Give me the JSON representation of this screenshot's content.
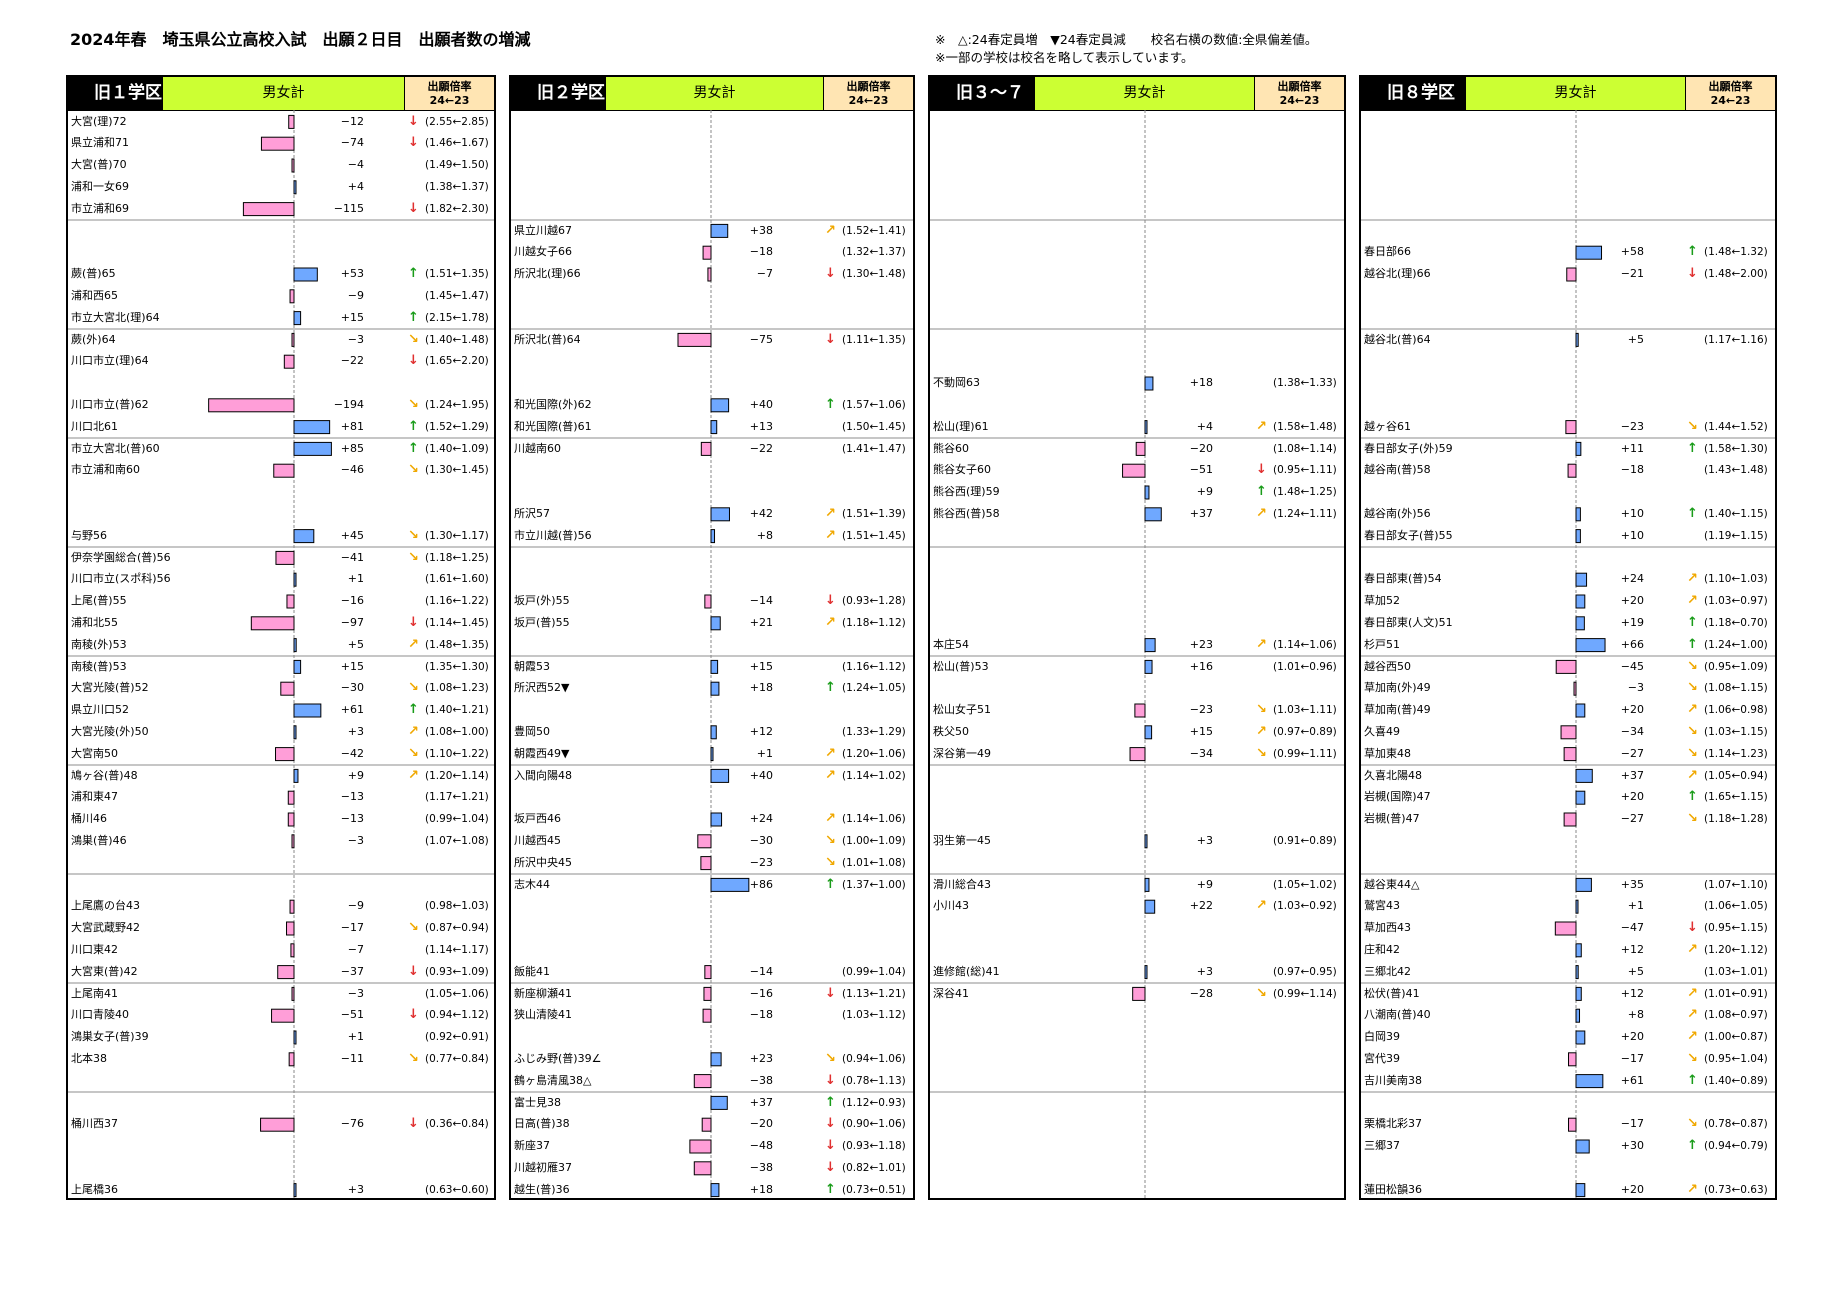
{
  "title": "2024年春　埼玉県公立高校入試　出願２日目　出願者数の増減",
  "notes": [
    "※　△:24春定員増　▼24春定員減　　校名右横の数値:全県偏差値。",
    "※一部の学校は校名を略して表示しています。"
  ],
  "header": {
    "gender_label": "男女計",
    "ratio_label_line1": "出願倍率",
    "ratio_label_line2": "24←23"
  },
  "colors": {
    "increase_bar": "#6fa8ff",
    "decrease_bar": "#ff9ed8",
    "up_arrow": "#1a9c1a",
    "down_arrow": "#e03030",
    "diag_up_arrow": "#f0a800",
    "diag_down_arrow": "#f0a800",
    "gender_bg": "#ccff33",
    "ratio_bg": "#ffe5b3"
  },
  "chart_data": [
    {
      "type": "bar",
      "district": "旧１学区",
      "rows": [
        {
          "name": "大宮(理)72",
          "delta": -12,
          "arrow": "down",
          "ratio": "(2.55←2.85)",
          "slot": 0
        },
        {
          "name": "県立浦和71",
          "delta": -74,
          "arrow": "down",
          "ratio": "(1.46←1.67)",
          "slot": 1
        },
        {
          "name": "大宮(普)70",
          "delta": -4,
          "arrow": "",
          "ratio": "(1.49←1.50)",
          "slot": 2
        },
        {
          "name": "浦和一女69",
          "delta": 4,
          "arrow": "",
          "ratio": "(1.38←1.37)",
          "slot": 3
        },
        {
          "name": "市立浦和69",
          "delta": -115,
          "arrow": "down",
          "ratio": "(1.82←2.30)",
          "slot": 4
        },
        {
          "name": "蕨(普)65",
          "delta": 53,
          "arrow": "up",
          "ratio": "(1.51←1.35)",
          "slot": 7
        },
        {
          "name": "浦和西65",
          "delta": -9,
          "arrow": "",
          "ratio": "(1.45←1.47)",
          "slot": 8
        },
        {
          "name": "市立大宮北(理)64",
          "delta": 15,
          "arrow": "up",
          "ratio": "(2.15←1.78)",
          "slot": 9
        },
        {
          "name": "蕨(外)64",
          "delta": -3,
          "arrow": "diag-down",
          "ratio": "(1.40←1.48)",
          "slot": 10
        },
        {
          "name": "川口市立(理)64",
          "delta": -22,
          "arrow": "down",
          "ratio": "(1.65←2.20)",
          "slot": 11
        },
        {
          "name": "川口市立(普)62",
          "delta": -194,
          "arrow": "diag-down",
          "ratio": "(1.24←1.95)",
          "slot": 13
        },
        {
          "name": "川口北61",
          "delta": 81,
          "arrow": "up",
          "ratio": "(1.52←1.29)",
          "slot": 14
        },
        {
          "name": "市立大宮北(普)60",
          "delta": 85,
          "arrow": "up",
          "ratio": "(1.40←1.09)",
          "slot": 15
        },
        {
          "name": "市立浦和南60",
          "delta": -46,
          "arrow": "diag-down",
          "ratio": "(1.30←1.45)",
          "slot": 16
        },
        {
          "name": "与野56",
          "delta": 45,
          "arrow": "diag-down",
          "ratio": "(1.30←1.17)",
          "slot": 19
        },
        {
          "name": "伊奈学園総合(普)56",
          "delta": -41,
          "arrow": "diag-down",
          "ratio": "(1.18←1.25)",
          "slot": 20
        },
        {
          "name": "川口市立(スポ科)56",
          "delta": 1,
          "arrow": "",
          "ratio": "(1.61←1.60)",
          "slot": 21
        },
        {
          "name": "上尾(普)55",
          "delta": -16,
          "arrow": "",
          "ratio": "(1.16←1.22)",
          "slot": 22
        },
        {
          "name": "浦和北55",
          "delta": -97,
          "arrow": "down",
          "ratio": "(1.14←1.45)",
          "slot": 23
        },
        {
          "name": "南稜(外)53",
          "delta": 5,
          "arrow": "diag-up",
          "ratio": "(1.48←1.35)",
          "slot": 24
        },
        {
          "name": "南稜(普)53",
          "delta": 15,
          "arrow": "",
          "ratio": "(1.35←1.30)",
          "slot": 25
        },
        {
          "name": "大宮光陵(普)52",
          "delta": -30,
          "arrow": "diag-down",
          "ratio": "(1.08←1.23)",
          "slot": 26
        },
        {
          "name": "県立川口52",
          "delta": 61,
          "arrow": "up",
          "ratio": "(1.40←1.21)",
          "slot": 27
        },
        {
          "name": "大宮光陵(外)50",
          "delta": 3,
          "arrow": "diag-up",
          "ratio": "(1.08←1.00)",
          "slot": 28
        },
        {
          "name": "大宮南50",
          "delta": -42,
          "arrow": "diag-down",
          "ratio": "(1.10←1.22)",
          "slot": 29
        },
        {
          "name": "鳩ヶ谷(普)48",
          "delta": 9,
          "arrow": "diag-up",
          "ratio": "(1.20←1.14)",
          "slot": 30
        },
        {
          "name": "浦和東47",
          "delta": -13,
          "arrow": "",
          "ratio": "(1.17←1.21)",
          "slot": 31
        },
        {
          "name": "桶川46",
          "delta": -13,
          "arrow": "",
          "ratio": "(0.99←1.04)",
          "slot": 32
        },
        {
          "name": "鴻巣(普)46",
          "delta": -3,
          "arrow": "",
          "ratio": "(1.07←1.08)",
          "slot": 33
        },
        {
          "name": "上尾鷹の台43",
          "delta": -9,
          "arrow": "",
          "ratio": "(0.98←1.03)",
          "slot": 36
        },
        {
          "name": "大宮武蔵野42",
          "delta": -17,
          "arrow": "diag-down",
          "ratio": "(0.87←0.94)",
          "slot": 37
        },
        {
          "name": "川口東42",
          "delta": -7,
          "arrow": "",
          "ratio": "(1.14←1.17)",
          "slot": 38
        },
        {
          "name": "大宮東(普)42",
          "delta": -37,
          "arrow": "down",
          "ratio": "(0.93←1.09)",
          "slot": 39
        },
        {
          "name": "上尾南41",
          "delta": -3,
          "arrow": "",
          "ratio": "(1.05←1.06)",
          "slot": 40
        },
        {
          "name": "川口青陵40",
          "delta": -51,
          "arrow": "down",
          "ratio": "(0.94←1.12)",
          "slot": 41
        },
        {
          "name": "鴻巣女子(普)39",
          "delta": 1,
          "arrow": "",
          "ratio": "(0.92←0.91)",
          "slot": 42
        },
        {
          "name": "北本38",
          "delta": -11,
          "arrow": "diag-down",
          "ratio": "(0.77←0.84)",
          "slot": 43
        },
        {
          "name": "桶川西37",
          "delta": -76,
          "arrow": "down",
          "ratio": "(0.36←0.84)",
          "slot": 46
        },
        {
          "name": "上尾橋36",
          "delta": 3,
          "arrow": "",
          "ratio": "(0.63←0.60)",
          "slot": 49
        }
      ]
    },
    {
      "type": "bar",
      "district": "旧２学区",
      "rows": [
        {
          "name": "県立川越67",
          "delta": 38,
          "arrow": "diag-up",
          "ratio": "(1.52←1.41)",
          "slot": 5
        },
        {
          "name": "川越女子66",
          "delta": -18,
          "arrow": "",
          "ratio": "(1.32←1.37)",
          "slot": 6
        },
        {
          "name": "所沢北(理)66",
          "delta": -7,
          "arrow": "down",
          "ratio": "(1.30←1.48)",
          "slot": 7
        },
        {
          "name": "所沢北(普)64",
          "delta": -75,
          "arrow": "down",
          "ratio": "(1.11←1.35)",
          "slot": 10
        },
        {
          "name": "和光国際(外)62",
          "delta": 40,
          "arrow": "up",
          "ratio": "(1.57←1.06)",
          "slot": 13
        },
        {
          "name": "和光国際(普)61",
          "delta": 13,
          "arrow": "",
          "ratio": "(1.50←1.45)",
          "slot": 14
        },
        {
          "name": "川越南60",
          "delta": -22,
          "arrow": "",
          "ratio": "(1.41←1.47)",
          "slot": 15
        },
        {
          "name": "所沢57",
          "delta": 42,
          "arrow": "diag-up",
          "ratio": "(1.51←1.39)",
          "slot": 18
        },
        {
          "name": "市立川越(普)56",
          "delta": 8,
          "arrow": "diag-up",
          "ratio": "(1.51←1.45)",
          "slot": 19
        },
        {
          "name": "坂戸(外)55",
          "delta": -14,
          "arrow": "down",
          "ratio": "(0.93←1.28)",
          "slot": 22
        },
        {
          "name": "坂戸(普)55",
          "delta": 21,
          "arrow": "diag-up",
          "ratio": "(1.18←1.12)",
          "slot": 23
        },
        {
          "name": "朝霞53",
          "delta": 15,
          "arrow": "",
          "ratio": "(1.16←1.12)",
          "slot": 25
        },
        {
          "name": "所沢西52▼",
          "delta": 18,
          "arrow": "up",
          "ratio": "(1.24←1.05)",
          "slot": 26
        },
        {
          "name": "豊岡50",
          "delta": 12,
          "arrow": "",
          "ratio": "(1.33←1.29)",
          "slot": 28
        },
        {
          "name": "朝霞西49▼",
          "delta": 1,
          "arrow": "diag-up",
          "ratio": "(1.20←1.06)",
          "slot": 29
        },
        {
          "name": "入間向陽48",
          "delta": 40,
          "arrow": "diag-up",
          "ratio": "(1.14←1.02)",
          "slot": 30
        },
        {
          "name": "坂戸西46",
          "delta": 24,
          "arrow": "diag-up",
          "ratio": "(1.14←1.06)",
          "slot": 32
        },
        {
          "name": "川越西45",
          "delta": -30,
          "arrow": "diag-down",
          "ratio": "(1.00←1.09)",
          "slot": 33
        },
        {
          "name": "所沢中央45",
          "delta": -23,
          "arrow": "diag-down",
          "ratio": "(1.01←1.08)",
          "slot": 34
        },
        {
          "name": "志木44",
          "delta": 86,
          "arrow": "up",
          "ratio": "(1.37←1.00)",
          "slot": 35
        },
        {
          "name": "飯能41",
          "delta": -14,
          "arrow": "",
          "ratio": "(0.99←1.04)",
          "slot": 39
        },
        {
          "name": "新座柳瀬41",
          "delta": -16,
          "arrow": "down",
          "ratio": "(1.13←1.21)",
          "slot": 40
        },
        {
          "name": "狭山清陵41",
          "delta": -18,
          "arrow": "",
          "ratio": "(1.03←1.12)",
          "slot": 41
        },
        {
          "name": "ふじみ野(普)39∠",
          "delta": 23,
          "arrow": "diag-down",
          "ratio": "(0.94←1.06)",
          "slot": 43
        },
        {
          "name": "鶴ヶ島清風38△",
          "delta": -38,
          "arrow": "down",
          "ratio": "(0.78←1.13)",
          "slot": 44
        },
        {
          "name": "富士見38",
          "delta": 37,
          "arrow": "up",
          "ratio": "(1.12←0.93)",
          "slot": 45
        },
        {
          "name": "日高(普)38",
          "delta": -20,
          "arrow": "down",
          "ratio": "(0.90←1.06)",
          "slot": 46
        },
        {
          "name": "新座37",
          "delta": -48,
          "arrow": "down",
          "ratio": "(0.93←1.18)",
          "slot": 47
        },
        {
          "name": "川越初雁37",
          "delta": -38,
          "arrow": "down",
          "ratio": "(0.82←1.01)",
          "slot": 48
        },
        {
          "name": "越生(普)36",
          "delta": 18,
          "arrow": "up",
          "ratio": "(0.73←0.51)",
          "slot": 49
        }
      ]
    },
    {
      "type": "bar",
      "district": "旧３～７学区",
      "rows": [
        {
          "name": "不動岡63",
          "delta": 18,
          "arrow": "",
          "ratio": "(1.38←1.33)",
          "slot": 12
        },
        {
          "name": "松山(理)61",
          "delta": 4,
          "arrow": "diag-up",
          "ratio": "(1.58←1.48)",
          "slot": 14
        },
        {
          "name": "熊谷60",
          "delta": -20,
          "arrow": "",
          "ratio": "(1.08←1.14)",
          "slot": 15
        },
        {
          "name": "熊谷女子60",
          "delta": -51,
          "arrow": "down",
          "ratio": "(0.95←1.11)",
          "slot": 16
        },
        {
          "name": "熊谷西(理)59",
          "delta": 9,
          "arrow": "up",
          "ratio": "(1.48←1.25)",
          "slot": 17
        },
        {
          "name": "熊谷西(普)58",
          "delta": 37,
          "arrow": "diag-up",
          "ratio": "(1.24←1.11)",
          "slot": 18
        },
        {
          "name": "本庄54",
          "delta": 23,
          "arrow": "diag-up",
          "ratio": "(1.14←1.06)",
          "slot": 24
        },
        {
          "name": "松山(普)53",
          "delta": 16,
          "arrow": "",
          "ratio": "(1.01←0.96)",
          "slot": 25
        },
        {
          "name": "松山女子51",
          "delta": -23,
          "arrow": "diag-down",
          "ratio": "(1.03←1.11)",
          "slot": 27
        },
        {
          "name": "秩父50",
          "delta": 15,
          "arrow": "diag-up",
          "ratio": "(0.97←0.89)",
          "slot": 28
        },
        {
          "name": "深谷第一49",
          "delta": -34,
          "arrow": "diag-down",
          "ratio": "(0.99←1.11)",
          "slot": 29
        },
        {
          "name": "羽生第一45",
          "delta": 3,
          "arrow": "",
          "ratio": "(0.91←0.89)",
          "slot": 33
        },
        {
          "name": "滑川総合43",
          "delta": 9,
          "arrow": "",
          "ratio": "(1.05←1.02)",
          "slot": 35
        },
        {
          "name": "小川43",
          "delta": 22,
          "arrow": "diag-up",
          "ratio": "(1.03←0.92)",
          "slot": 36
        },
        {
          "name": "進修館(総)41",
          "delta": 3,
          "arrow": "",
          "ratio": "(0.97←0.95)",
          "slot": 39
        },
        {
          "name": "深谷41",
          "delta": -28,
          "arrow": "diag-down",
          "ratio": "(0.99←1.14)",
          "slot": 40
        }
      ]
    },
    {
      "type": "bar",
      "district": "旧８学区",
      "rows": [
        {
          "name": "春日部66",
          "delta": 58,
          "arrow": "up",
          "ratio": "(1.48←1.32)",
          "slot": 6
        },
        {
          "name": "越谷北(理)66",
          "delta": -21,
          "arrow": "down",
          "ratio": "(1.48←2.00)",
          "slot": 7
        },
        {
          "name": "越谷北(普)64",
          "delta": 5,
          "arrow": "",
          "ratio": "(1.17←1.16)",
          "slot": 10
        },
        {
          "name": "越ヶ谷61",
          "delta": -23,
          "arrow": "diag-down",
          "ratio": "(1.44←1.52)",
          "slot": 14
        },
        {
          "name": "春日部女子(外)59",
          "delta": 11,
          "arrow": "up",
          "ratio": "(1.58←1.30)",
          "slot": 15
        },
        {
          "name": "越谷南(普)58",
          "delta": -18,
          "arrow": "",
          "ratio": "(1.43←1.48)",
          "slot": 16
        },
        {
          "name": "越谷南(外)56",
          "delta": 10,
          "arrow": "up",
          "ratio": "(1.40←1.15)",
          "slot": 18
        },
        {
          "name": "春日部女子(普)55",
          "delta": 10,
          "arrow": "",
          "ratio": "(1.19←1.15)",
          "slot": 19
        },
        {
          "name": "春日部東(普)54",
          "delta": 24,
          "arrow": "diag-up",
          "ratio": "(1.10←1.03)",
          "slot": 21
        },
        {
          "name": "草加52",
          "delta": 20,
          "arrow": "diag-up",
          "ratio": "(1.03←0.97)",
          "slot": 22
        },
        {
          "name": "春日部東(人文)51",
          "delta": 19,
          "arrow": "up",
          "ratio": "(1.18←0.70)",
          "slot": 23
        },
        {
          "name": "杉戸51",
          "delta": 66,
          "arrow": "up",
          "ratio": "(1.24←1.00)",
          "slot": 24
        },
        {
          "name": "越谷西50",
          "delta": -45,
          "arrow": "diag-down",
          "ratio": "(0.95←1.09)",
          "slot": 25
        },
        {
          "name": "草加南(外)49",
          "delta": -3,
          "arrow": "diag-down",
          "ratio": "(1.08←1.15)",
          "slot": 26
        },
        {
          "name": "草加南(普)49",
          "delta": 20,
          "arrow": "diag-up",
          "ratio": "(1.06←0.98)",
          "slot": 27
        },
        {
          "name": "久喜49",
          "delta": -34,
          "arrow": "diag-down",
          "ratio": "(1.03←1.15)",
          "slot": 28
        },
        {
          "name": "草加東48",
          "delta": -27,
          "arrow": "diag-down",
          "ratio": "(1.14←1.23)",
          "slot": 29
        },
        {
          "name": "久喜北陽48",
          "delta": 37,
          "arrow": "diag-up",
          "ratio": "(1.05←0.94)",
          "slot": 30
        },
        {
          "name": "岩槻(国際)47",
          "delta": 20,
          "arrow": "up",
          "ratio": "(1.65←1.15)",
          "slot": 31
        },
        {
          "name": "岩槻(普)47",
          "delta": -27,
          "arrow": "diag-down",
          "ratio": "(1.18←1.28)",
          "slot": 32
        },
        {
          "name": "越谷東44△",
          "delta": 35,
          "arrow": "",
          "ratio": "(1.07←1.10)",
          "slot": 35
        },
        {
          "name": "鷲宮43",
          "delta": 1,
          "arrow": "",
          "ratio": "(1.06←1.05)",
          "slot": 36
        },
        {
          "name": "草加西43",
          "delta": -47,
          "arrow": "down",
          "ratio": "(0.95←1.15)",
          "slot": 37
        },
        {
          "name": "庄和42",
          "delta": 12,
          "arrow": "diag-up",
          "ratio": "(1.20←1.12)",
          "slot": 38
        },
        {
          "name": "三郷北42",
          "delta": 5,
          "arrow": "",
          "ratio": "(1.03←1.01)",
          "slot": 39
        },
        {
          "name": "松伏(普)41",
          "delta": 12,
          "arrow": "diag-up",
          "ratio": "(1.01←0.91)",
          "slot": 40
        },
        {
          "name": "八潮南(普)40",
          "delta": 8,
          "arrow": "diag-up",
          "ratio": "(1.08←0.97)",
          "slot": 41
        },
        {
          "name": "白岡39",
          "delta": 20,
          "arrow": "diag-up",
          "ratio": "(1.00←0.87)",
          "slot": 42
        },
        {
          "name": "宮代39",
          "delta": -17,
          "arrow": "diag-down",
          "ratio": "(0.95←1.04)",
          "slot": 43
        },
        {
          "name": "吉川美南38",
          "delta": 61,
          "arrow": "up",
          "ratio": "(1.40←0.89)",
          "slot": 44
        },
        {
          "name": "栗橋北彩37",
          "delta": -17,
          "arrow": "diag-down",
          "ratio": "(0.78←0.87)",
          "slot": 46
        },
        {
          "name": "三郷37",
          "delta": 30,
          "arrow": "up",
          "ratio": "(0.94←0.79)",
          "slot": 47
        },
        {
          "name": "蓮田松韻36",
          "delta": 20,
          "arrow": "diag-up",
          "ratio": "(0.73←0.63)",
          "slot": 49
        }
      ]
    }
  ]
}
